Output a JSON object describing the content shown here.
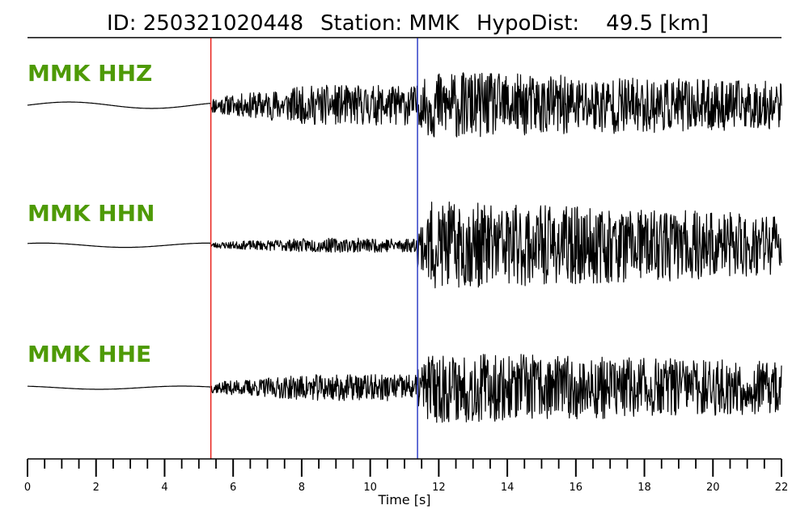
{
  "title": {
    "id": "ID: 250321020448",
    "station": "Station: MMK",
    "hypodist": "HypoDist:    49.5 [km]"
  },
  "chart_data": {
    "type": "line",
    "xlabel": "Time [s]",
    "xlim": [
      0,
      22
    ],
    "x_major_ticks": [
      0,
      2,
      4,
      6,
      8,
      10,
      12,
      14,
      16,
      18,
      20,
      22
    ],
    "x_tick_labels": [
      "0",
      "2",
      "4",
      "6",
      "8",
      "10",
      "12",
      "14",
      "16",
      "18",
      "20",
      "22"
    ],
    "minor_tick_step": 0.5,
    "p_arrival_s": 5.35,
    "s_arrival_s": 11.38,
    "p_color": "#e8221c",
    "s_color": "#3040c8",
    "trace_color": "#000000",
    "label_color": "#4e9a06",
    "series": [
      {
        "name": "MMK HHZ",
        "pre": 0.12,
        "post_p": 0.45,
        "post_s": 0.78,
        "decay": 0.035,
        "seed": 11
      },
      {
        "name": "MMK HHN",
        "pre": 0.08,
        "post_p": 0.16,
        "post_s": 1.0,
        "decay": 0.03,
        "seed": 23
      },
      {
        "name": "MMK HHE",
        "pre": 0.06,
        "post_p": 0.3,
        "post_s": 0.82,
        "decay": 0.03,
        "seed": 37
      }
    ]
  }
}
